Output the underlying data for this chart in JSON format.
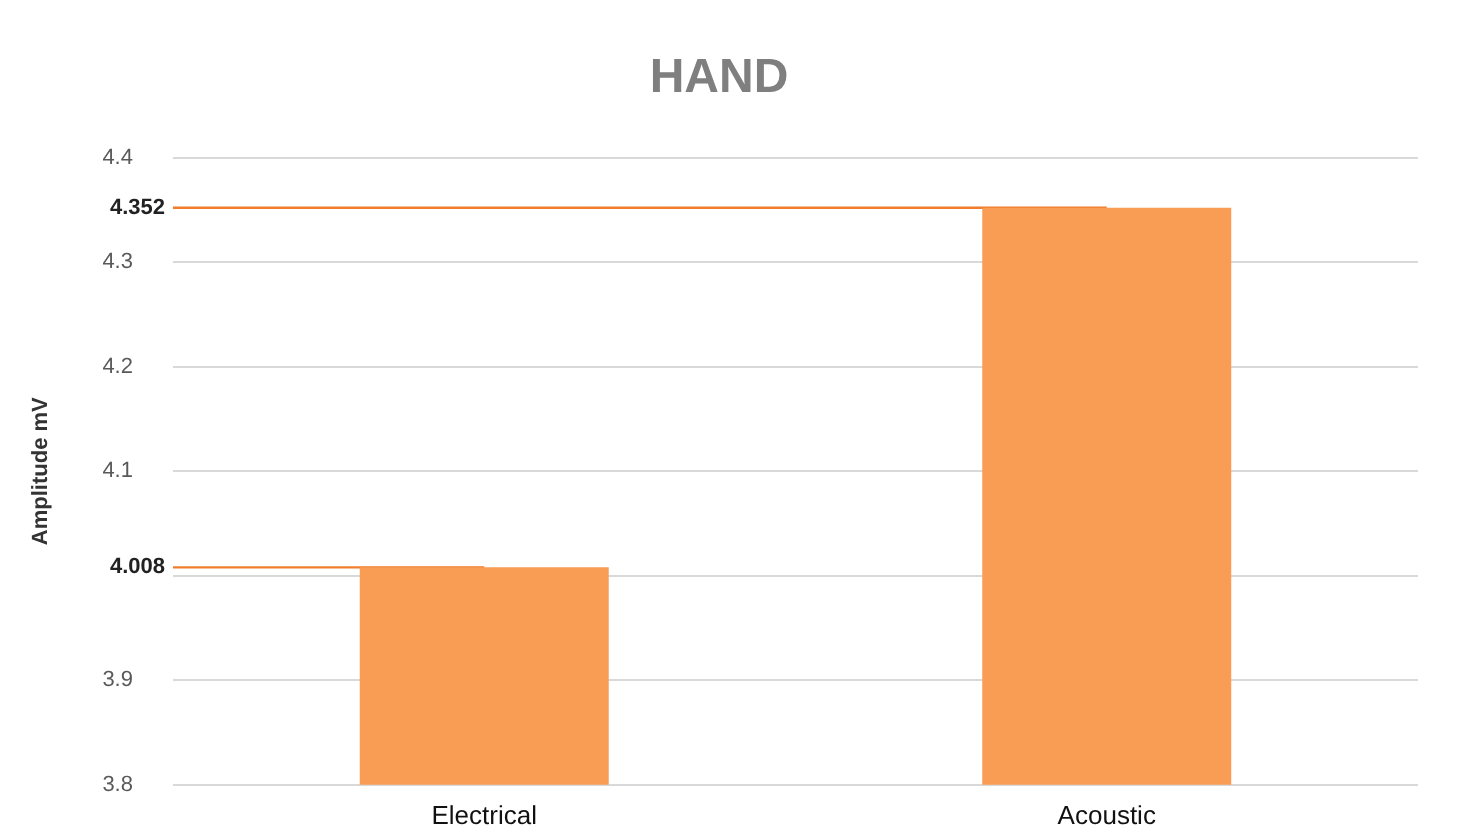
{
  "chart_data": {
    "type": "bar",
    "title": "HAND",
    "ylabel": "Amplitude mV",
    "categories": [
      "Electrical",
      "Acoustic"
    ],
    "values": [
      4.008,
      4.352
    ],
    "color": "#f99d55",
    "ylim": [
      3.8,
      4.4
    ],
    "yticks": [
      3.8,
      3.9,
      {
        "value": 4,
        "label": null
      },
      4.1,
      4.2,
      4.3,
      4.4
    ],
    "grid": "y",
    "legend": false,
    "ref_lines": [
      {
        "axis": "y",
        "value": 4.352,
        "label": "4.352",
        "color": "#f07c2c"
      },
      {
        "axis": "y",
        "value": 4.008,
        "label": "4.008",
        "color": "#f07c2c"
      }
    ]
  }
}
